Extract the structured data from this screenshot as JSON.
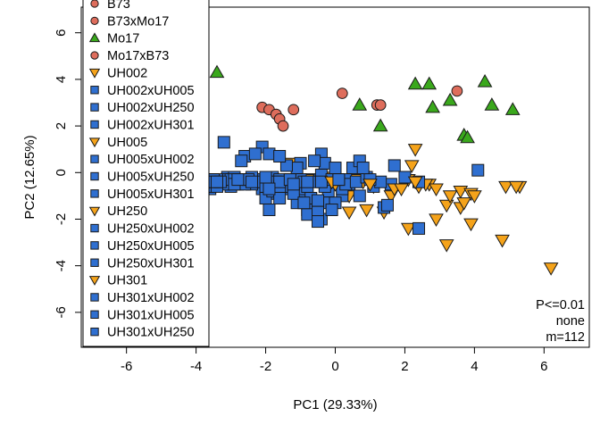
{
  "chart_data": {
    "type": "scatter",
    "title": "",
    "xlabel": "PC1 (29.33%)",
    "ylabel": "PC2 (12.65%)",
    "xlim": [
      -7.3,
      7.3
    ],
    "ylim": [
      -7.5,
      7.1
    ],
    "xticks": [
      -6,
      -4,
      -2,
      0,
      2,
      4,
      6
    ],
    "yticks": [
      -6,
      -4,
      -2,
      0,
      2,
      4,
      6
    ],
    "grid": false,
    "legend": {
      "position": "top-left"
    },
    "annotations": [
      "P<=0.01",
      "none",
      "m=112"
    ],
    "colors": {
      "blue": "#2f6fd0",
      "orange": "#f5a31a",
      "green": "#3aa81c",
      "salmon": "#de6d5c"
    },
    "series": [
      {
        "name": "B73",
        "marker": "circle",
        "color": "#de6d5c",
        "points": []
      },
      {
        "name": "B73xMo17",
        "marker": "circle",
        "color": "#de6d5c",
        "points": [
          [
            -2.1,
            2.8
          ],
          [
            -1.9,
            2.7
          ],
          [
            -1.7,
            2.5
          ],
          [
            -1.6,
            2.3
          ],
          [
            -1.5,
            2.0
          ],
          [
            -1.2,
            2.7
          ],
          [
            0.2,
            3.4
          ],
          [
            1.2,
            2.9
          ],
          [
            1.3,
            2.9
          ],
          [
            3.5,
            3.5
          ]
        ]
      },
      {
        "name": "Mo17",
        "marker": "triangle-up",
        "color": "#3aa81c",
        "points": [
          [
            -3.4,
            4.3
          ],
          [
            0.7,
            2.9
          ],
          [
            1.3,
            2.0
          ],
          [
            2.3,
            3.8
          ],
          [
            2.7,
            3.8
          ],
          [
            2.8,
            2.8
          ],
          [
            3.3,
            3.1
          ],
          [
            3.7,
            1.6
          ],
          [
            3.8,
            1.5
          ],
          [
            4.3,
            3.9
          ],
          [
            4.5,
            2.9
          ],
          [
            5.1,
            2.7
          ]
        ]
      },
      {
        "name": "Mo17xB73",
        "marker": "circle",
        "color": "#de6d5c",
        "points": []
      },
      {
        "name": "UH002",
        "marker": "triangle-down",
        "color": "#f5a31a",
        "points": [
          [
            -1.3,
            0.4
          ],
          [
            -0.3,
            -0.2
          ],
          [
            0.4,
            -1.0
          ],
          [
            1.1,
            -0.6
          ],
          [
            1.6,
            -1.0
          ],
          [
            2.1,
            -0.3
          ],
          [
            2.3,
            1.0
          ],
          [
            2.7,
            -0.5
          ],
          [
            3.2,
            -1.4
          ],
          [
            3.6,
            -0.8
          ],
          [
            3.9,
            -0.9
          ]
        ]
      },
      {
        "name": "UH002xUH005",
        "marker": "square",
        "color": "#2f6fd0",
        "points": [
          [
            -4.0,
            -0.5
          ],
          [
            -3.6,
            -0.7
          ],
          [
            -3.0,
            -0.4
          ],
          [
            -2.7,
            -0.4
          ],
          [
            -2.4,
            -0.3
          ],
          [
            -2.1,
            1.1
          ],
          [
            -1.8,
            -0.5
          ],
          [
            -1.4,
            -0.5
          ],
          [
            -1.0,
            -0.9
          ],
          [
            -0.6,
            -1.3
          ],
          [
            -0.2,
            -0.8
          ],
          [
            0.4,
            -0.5
          ]
        ]
      },
      {
        "name": "UH002xUH250",
        "marker": "square",
        "color": "#2f6fd0",
        "points": [
          [
            -4.0,
            0.1
          ],
          [
            -3.8,
            -0.5
          ],
          [
            -3.3,
            -0.4
          ],
          [
            -2.9,
            -0.3
          ],
          [
            -2.5,
            -0.4
          ],
          [
            -2.1,
            -0.7
          ],
          [
            -1.7,
            -0.9
          ],
          [
            -1.3,
            -0.4
          ],
          [
            -0.9,
            -0.7
          ],
          [
            -0.4,
            0.8
          ],
          [
            0.0,
            -0.4
          ],
          [
            0.5,
            0.2
          ]
        ]
      },
      {
        "name": "UH002xUH301",
        "marker": "square",
        "color": "#2f6fd0",
        "points": [
          [
            -3.9,
            -1.0
          ],
          [
            -3.5,
            -0.3
          ],
          [
            -3.1,
            -0.2
          ],
          [
            -2.8,
            -0.5
          ],
          [
            -2.2,
            -0.3
          ],
          [
            -1.9,
            -1.6
          ],
          [
            -1.5,
            -0.5
          ],
          [
            -1.1,
            -1.3
          ],
          [
            -0.7,
            -0.3
          ],
          [
            -0.3,
            -0.6
          ],
          [
            0.2,
            -1.0
          ],
          [
            0.7,
            -1.0
          ]
        ]
      },
      {
        "name": "UH005",
        "marker": "triangle-down",
        "color": "#f5a31a",
        "points": [
          [
            -0.8,
            -0.3
          ],
          [
            -0.1,
            -0.3
          ],
          [
            0.6,
            -0.3
          ],
          [
            0.9,
            -1.6
          ],
          [
            1.4,
            -1.7
          ],
          [
            2.2,
            0.3
          ],
          [
            2.4,
            -0.6
          ],
          [
            2.9,
            -2.0
          ],
          [
            3.9,
            -2.2
          ],
          [
            5.3,
            -0.6
          ]
        ]
      },
      {
        "name": "UH005xUH002",
        "marker": "square",
        "color": "#2f6fd0",
        "points": [
          [
            -4.0,
            -0.2
          ],
          [
            -3.7,
            -0.6
          ],
          [
            -3.2,
            1.3
          ],
          [
            -2.6,
            0.7
          ],
          [
            -2.2,
            -0.4
          ],
          [
            -1.8,
            -0.2
          ],
          [
            -1.4,
            -0.7
          ],
          [
            -1.0,
            0.4
          ],
          [
            -0.6,
            -0.4
          ],
          [
            -0.2,
            -1.3
          ],
          [
            0.3,
            -0.3
          ],
          [
            1.1,
            -0.6
          ]
        ]
      },
      {
        "name": "UH005xUH250",
        "marker": "square",
        "color": "#2f6fd0",
        "points": [
          [
            -3.9,
            -0.7
          ],
          [
            -3.6,
            -0.4
          ],
          [
            -3.1,
            -0.3
          ],
          [
            -2.7,
            0.5
          ],
          [
            -2.4,
            -0.5
          ],
          [
            -2.0,
            -1.1
          ],
          [
            -1.6,
            -0.3
          ],
          [
            -1.2,
            -0.4
          ],
          [
            -0.8,
            -1.6
          ],
          [
            -0.4,
            -0.1
          ],
          [
            0.2,
            -0.7
          ],
          [
            1.4,
            -1.5
          ]
        ]
      },
      {
        "name": "UH005xUH301",
        "marker": "square",
        "color": "#2f6fd0",
        "points": [
          [
            -3.8,
            -0.8
          ],
          [
            -3.4,
            -0.3
          ],
          [
            -3.0,
            -0.6
          ],
          [
            -2.6,
            -0.3
          ],
          [
            -2.3,
            -0.3
          ],
          [
            -1.9,
            0.8
          ],
          [
            -1.5,
            -0.6
          ],
          [
            -1.1,
            0.2
          ],
          [
            -0.7,
            -1.1
          ],
          [
            -0.3,
            0.4
          ],
          [
            0.3,
            -0.5
          ],
          [
            1.6,
            -0.5
          ]
        ]
      },
      {
        "name": "UH250",
        "marker": "triangle-down",
        "color": "#f5a31a",
        "points": [
          [
            0.0,
            -0.5
          ],
          [
            0.8,
            -0.4
          ],
          [
            1.7,
            -0.7
          ],
          [
            2.1,
            -2.4
          ],
          [
            2.6,
            -0.5
          ],
          [
            3.2,
            -3.1
          ],
          [
            3.6,
            -1.5
          ],
          [
            4.8,
            -2.9
          ],
          [
            4.9,
            -0.6
          ],
          [
            6.2,
            -4.1
          ]
        ]
      },
      {
        "name": "UH250xUH002",
        "marker": "square",
        "color": "#2f6fd0",
        "points": [
          [
            -4.0,
            -1.2
          ],
          [
            -3.7,
            -0.3
          ],
          [
            -3.2,
            -0.5
          ],
          [
            -2.8,
            -0.4
          ],
          [
            -2.3,
            0.8
          ],
          [
            -1.8,
            -0.8
          ],
          [
            -1.4,
            0.3
          ],
          [
            -1.0,
            -0.3
          ],
          [
            -0.6,
            0.5
          ],
          [
            -0.1,
            -0.3
          ],
          [
            0.6,
            -0.4
          ],
          [
            1.3,
            -0.4
          ]
        ]
      },
      {
        "name": "UH250xUH005",
        "marker": "square",
        "color": "#2f6fd0",
        "points": [
          [
            -3.9,
            -0.4
          ],
          [
            -3.5,
            -0.3
          ],
          [
            -3.0,
            -0.3
          ],
          [
            -2.6,
            -0.5
          ],
          [
            -2.1,
            -0.4
          ],
          [
            -1.7,
            -0.4
          ],
          [
            -1.3,
            -0.3
          ],
          [
            -0.8,
            -1.8
          ],
          [
            -0.4,
            -0.4
          ],
          [
            0.1,
            -0.3
          ],
          [
            0.9,
            -0.2
          ],
          [
            2.0,
            -0.2
          ]
        ]
      },
      {
        "name": "UH250xUH301",
        "marker": "square",
        "color": "#2f6fd0",
        "points": [
          [
            -4.0,
            -0.1
          ],
          [
            -3.4,
            -0.6
          ],
          [
            -2.9,
            -0.2
          ],
          [
            -2.5,
            -0.3
          ],
          [
            -2.0,
            -0.3
          ],
          [
            -1.6,
            -1.1
          ],
          [
            -1.2,
            -0.5
          ],
          [
            -0.9,
            -0.4
          ],
          [
            -0.5,
            -1.2
          ],
          [
            0.0,
            0.2
          ],
          [
            1.0,
            -0.3
          ],
          [
            2.4,
            -0.4
          ]
        ]
      },
      {
        "name": "UH301",
        "marker": "triangle-down",
        "color": "#f5a31a",
        "points": [
          [
            -0.1,
            -0.4
          ],
          [
            0.4,
            -1.7
          ],
          [
            1.0,
            -0.5
          ],
          [
            1.9,
            -0.7
          ],
          [
            2.3,
            -0.4
          ],
          [
            2.9,
            -0.7
          ],
          [
            3.3,
            -1.0
          ],
          [
            3.7,
            -1.3
          ],
          [
            4.0,
            -1.0
          ],
          [
            5.2,
            -0.6
          ]
        ]
      },
      {
        "name": "UH301xUH002",
        "marker": "square",
        "color": "#2f6fd0",
        "points": [
          [
            -3.9,
            -1.0
          ],
          [
            -3.3,
            -0.4
          ],
          [
            -2.9,
            -0.3
          ],
          [
            -2.4,
            -0.2
          ],
          [
            -2.0,
            -0.6
          ],
          [
            -1.6,
            -0.6
          ],
          [
            -1.2,
            -0.9
          ],
          [
            -0.8,
            -0.6
          ],
          [
            -0.4,
            -2.0
          ],
          [
            0.0,
            -1.3
          ],
          [
            0.7,
            0.5
          ],
          [
            2.4,
            -2.4
          ]
        ]
      },
      {
        "name": "UH301xUH005",
        "marker": "square",
        "color": "#2f6fd0",
        "points": [
          [
            -4.0,
            -0.7
          ],
          [
            -3.5,
            -0.4
          ],
          [
            -2.9,
            -0.5
          ],
          [
            -2.5,
            -0.3
          ],
          [
            -2.0,
            -0.2
          ],
          [
            -1.6,
            -0.4
          ],
          [
            -1.3,
            -0.3
          ],
          [
            -0.9,
            -1.3
          ],
          [
            -0.5,
            -1.7
          ],
          [
            -0.1,
            -1.6
          ],
          [
            1.7,
            0.3
          ],
          [
            4.1,
            0.1
          ]
        ]
      },
      {
        "name": "UH301xUH250",
        "marker": "square",
        "color": "#2f6fd0",
        "points": [
          [
            -3.9,
            -0.3
          ],
          [
            -3.4,
            -0.4
          ],
          [
            -2.8,
            -0.3
          ],
          [
            -2.4,
            -0.4
          ],
          [
            -1.9,
            -0.7
          ],
          [
            -1.6,
            0.7
          ],
          [
            -1.2,
            -0.5
          ],
          [
            -0.8,
            -0.4
          ],
          [
            -0.5,
            -2.1
          ],
          [
            0.1,
            -0.3
          ],
          [
            0.8,
            0.2
          ],
          [
            1.5,
            -1.4
          ]
        ]
      }
    ]
  }
}
